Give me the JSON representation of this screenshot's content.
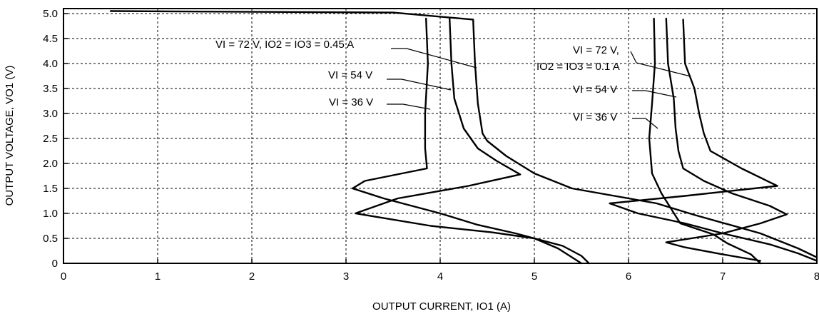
{
  "chart_data": {
    "type": "line",
    "title": "",
    "xlabel": "OUTPUT CURRENT, IO1 (A)",
    "ylabel": "OUTPUT VOLTAGE, VO1 (V)",
    "xlim": [
      0,
      8
    ],
    "ylim": [
      0,
      5.1
    ],
    "x_ticks": [
      "0",
      "1",
      "2",
      "3",
      "4",
      "5",
      "6",
      "7",
      "8"
    ],
    "y_ticks": [
      "0",
      "0.5",
      "1.0",
      "1.5",
      "2.0",
      "2.5",
      "3.0",
      "3.5",
      "4.0",
      "4.5",
      "5.0"
    ],
    "grid": true,
    "series": [
      {
        "name": "VI = 72 V, IO2 = IO3 = 0.45 A",
        "points": [
          [
            0.5,
            5.05
          ],
          [
            3.5,
            5.02
          ],
          [
            4.35,
            4.88
          ],
          [
            4.37,
            4.0
          ],
          [
            4.4,
            3.2
          ],
          [
            4.45,
            2.6
          ],
          [
            4.5,
            2.45
          ],
          [
            4.7,
            2.15
          ],
          [
            5.0,
            1.8
          ],
          [
            5.4,
            1.5
          ],
          [
            6.3,
            1.2
          ],
          [
            6.7,
            0.97
          ],
          [
            7.4,
            0.6
          ],
          [
            7.8,
            0.3
          ],
          [
            8.0,
            0.12
          ]
        ]
      },
      {
        "name": "VI = 54 V",
        "points": [
          [
            4.1,
            4.9
          ],
          [
            4.12,
            4.0
          ],
          [
            4.15,
            3.3
          ],
          [
            4.25,
            2.7
          ],
          [
            4.4,
            2.3
          ],
          [
            4.6,
            2.05
          ],
          [
            4.85,
            1.78
          ],
          [
            4.3,
            1.55
          ],
          [
            3.55,
            1.3
          ],
          [
            3.1,
            1.0
          ],
          [
            3.9,
            0.75
          ],
          [
            4.55,
            0.62
          ],
          [
            5.0,
            0.5
          ],
          [
            5.25,
            0.3
          ],
          [
            5.5,
            0.0
          ]
        ]
      },
      {
        "name": "VI = 36 V",
        "points": [
          [
            3.85,
            4.9
          ],
          [
            3.87,
            4.0
          ],
          [
            3.84,
            3.0
          ],
          [
            3.84,
            2.3
          ],
          [
            3.86,
            1.9
          ],
          [
            3.2,
            1.65
          ],
          [
            3.07,
            1.5
          ],
          [
            3.4,
            1.3
          ],
          [
            4.0,
            1.0
          ],
          [
            4.4,
            0.77
          ],
          [
            4.8,
            0.6
          ],
          [
            5.3,
            0.35
          ],
          [
            5.5,
            0.15
          ],
          [
            5.58,
            0.0
          ]
        ]
      },
      {
        "name": "VI = 72 V, IO2 = IO3 = 0.1 A",
        "points": [
          [
            6.58,
            4.88
          ],
          [
            6.6,
            4.0
          ],
          [
            6.7,
            3.5
          ],
          [
            6.75,
            3.0
          ],
          [
            6.8,
            2.6
          ],
          [
            6.87,
            2.25
          ],
          [
            7.2,
            1.9
          ],
          [
            7.58,
            1.55
          ],
          [
            6.6,
            1.35
          ],
          [
            5.8,
            1.2
          ],
          [
            6.1,
            1.0
          ],
          [
            6.6,
            0.8
          ],
          [
            7.0,
            0.6
          ],
          [
            7.5,
            0.38
          ],
          [
            7.8,
            0.2
          ],
          [
            8.0,
            0.05
          ]
        ]
      },
      {
        "name": "VI = 54 V",
        "points": [
          [
            6.4,
            4.9
          ],
          [
            6.42,
            4.0
          ],
          [
            6.48,
            3.3
          ],
          [
            6.5,
            2.7
          ],
          [
            6.53,
            2.25
          ],
          [
            6.58,
            1.9
          ],
          [
            6.8,
            1.65
          ],
          [
            7.1,
            1.4
          ],
          [
            7.5,
            1.15
          ],
          [
            7.68,
            0.98
          ],
          [
            7.4,
            0.8
          ],
          [
            7.0,
            0.6
          ],
          [
            6.4,
            0.42
          ],
          [
            6.6,
            0.32
          ],
          [
            7.0,
            0.18
          ],
          [
            7.4,
            0.05
          ]
        ]
      },
      {
        "name": "VI = 36 V",
        "points": [
          [
            6.27,
            4.9
          ],
          [
            6.28,
            4.0
          ],
          [
            6.25,
            3.2
          ],
          [
            6.22,
            2.5
          ],
          [
            6.25,
            1.8
          ],
          [
            6.35,
            1.4
          ],
          [
            6.45,
            1.1
          ],
          [
            6.55,
            0.8
          ],
          [
            6.9,
            0.58
          ],
          [
            7.05,
            0.4
          ],
          [
            7.3,
            0.18
          ],
          [
            7.4,
            0.0
          ]
        ]
      }
    ],
    "annotations": {
      "label_72_045": "VI = 72 V, IO2 = IO3 = 0.45 A",
      "label_54_left": "VI = 54 V",
      "label_36_left": "VI = 36 V",
      "label_72_01_line1": "VI = 72 V,",
      "label_72_01_line2": "IO2 = IO3 = 0.1 A",
      "label_54_right": "VI = 54 V",
      "label_36_right": "VI = 36 V"
    }
  }
}
